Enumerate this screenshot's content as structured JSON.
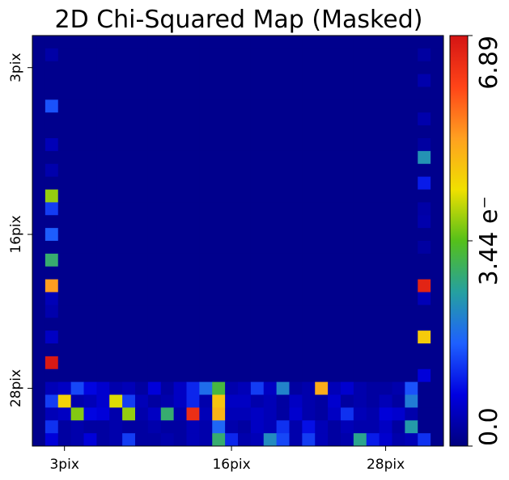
{
  "chart_data": {
    "type": "heatmap",
    "title": "2D Chi-Squared Map (Masked)",
    "grid_size": 32,
    "x_ticks": [
      {
        "index": 3,
        "label": "3pix"
      },
      {
        "index": 16,
        "label": "16pix"
      },
      {
        "index": 28,
        "label": "28pix"
      }
    ],
    "y_ticks": [
      {
        "index": 3,
        "label": "3pix"
      },
      {
        "index": 16,
        "label": "16pix"
      },
      {
        "index": 28,
        "label": "28pix"
      }
    ],
    "colorbar": {
      "min": 0.0,
      "max": 6.89,
      "min_label": "0.0",
      "mid_label": "3.44 e⁻",
      "max_label": "6.89",
      "colormap": "jet-like"
    },
    "background_value": 0.12,
    "cells": [
      {
        "r": 1,
        "c": 1,
        "v": 0.35
      },
      {
        "r": 5,
        "c": 1,
        "v": 1.6
      },
      {
        "r": 8,
        "c": 1,
        "v": 0.5
      },
      {
        "r": 10,
        "c": 1,
        "v": 0.4
      },
      {
        "r": 12,
        "c": 1,
        "v": 3.8
      },
      {
        "r": 13,
        "c": 1,
        "v": 1.4
      },
      {
        "r": 15,
        "c": 1,
        "v": 1.7
      },
      {
        "r": 17,
        "c": 1,
        "v": 2.9
      },
      {
        "r": 19,
        "c": 1,
        "v": 5.2
      },
      {
        "r": 20,
        "c": 1,
        "v": 0.5
      },
      {
        "r": 21,
        "c": 1,
        "v": 0.4
      },
      {
        "r": 23,
        "c": 1,
        "v": 0.6
      },
      {
        "r": 25,
        "c": 1,
        "v": 6.8
      },
      {
        "r": 1,
        "c": 30,
        "v": 0.3
      },
      {
        "r": 3,
        "c": 30,
        "v": 0.4
      },
      {
        "r": 6,
        "c": 30,
        "v": 0.4
      },
      {
        "r": 8,
        "c": 30,
        "v": 0.3
      },
      {
        "r": 9,
        "c": 30,
        "v": 2.4
      },
      {
        "r": 11,
        "c": 30,
        "v": 1.1
      },
      {
        "r": 13,
        "c": 30,
        "v": 0.35
      },
      {
        "r": 14,
        "c": 30,
        "v": 0.4
      },
      {
        "r": 16,
        "c": 30,
        "v": 0.3
      },
      {
        "r": 19,
        "c": 30,
        "v": 6.6
      },
      {
        "r": 20,
        "c": 30,
        "v": 0.5
      },
      {
        "r": 23,
        "c": 30,
        "v": 4.6
      },
      {
        "r": 26,
        "c": 30,
        "v": 0.8
      },
      {
        "r": 27,
        "c": 1,
        "v": 0.5
      },
      {
        "r": 27,
        "c": 2,
        "v": 0.6
      },
      {
        "r": 27,
        "c": 3,
        "v": 1.5
      },
      {
        "r": 27,
        "c": 4,
        "v": 0.9
      },
      {
        "r": 27,
        "c": 5,
        "v": 0.7
      },
      {
        "r": 27,
        "c": 6,
        "v": 0.4
      },
      {
        "r": 27,
        "c": 7,
        "v": 0.5
      },
      {
        "r": 27,
        "c": 8,
        "v": 0.3
      },
      {
        "r": 27,
        "c": 9,
        "v": 0.8
      },
      {
        "r": 27,
        "c": 10,
        "v": 0.3
      },
      {
        "r": 27,
        "c": 11,
        "v": 0.6
      },
      {
        "r": 27,
        "c": 12,
        "v": 1.2
      },
      {
        "r": 27,
        "c": 13,
        "v": 1.9
      },
      {
        "r": 27,
        "c": 14,
        "v": 3.2
      },
      {
        "r": 27,
        "c": 15,
        "v": 0.4
      },
      {
        "r": 27,
        "c": 16,
        "v": 0.5
      },
      {
        "r": 27,
        "c": 17,
        "v": 1.4
      },
      {
        "r": 27,
        "c": 18,
        "v": 0.6
      },
      {
        "r": 27,
        "c": 19,
        "v": 2.2
      },
      {
        "r": 27,
        "c": 20,
        "v": 0.3
      },
      {
        "r": 27,
        "c": 21,
        "v": 0.4
      },
      {
        "r": 27,
        "c": 22,
        "v": 5.0
      },
      {
        "r": 27,
        "c": 23,
        "v": 0.5
      },
      {
        "r": 27,
        "c": 24,
        "v": 0.7
      },
      {
        "r": 27,
        "c": 25,
        "v": 0.4
      },
      {
        "r": 27,
        "c": 26,
        "v": 0.3
      },
      {
        "r": 27,
        "c": 27,
        "v": 0.3
      },
      {
        "r": 27,
        "c": 28,
        "v": 0.4
      },
      {
        "r": 27,
        "c": 29,
        "v": 1.6
      },
      {
        "r": 28,
        "c": 1,
        "v": 1.4
      },
      {
        "r": 28,
        "c": 2,
        "v": 4.5
      },
      {
        "r": 28,
        "c": 3,
        "v": 0.4
      },
      {
        "r": 28,
        "c": 4,
        "v": 0.5
      },
      {
        "r": 28,
        "c": 5,
        "v": 0.7
      },
      {
        "r": 28,
        "c": 6,
        "v": 4.2
      },
      {
        "r": 28,
        "c": 7,
        "v": 1.4
      },
      {
        "r": 28,
        "c": 8,
        "v": 0.5
      },
      {
        "r": 28,
        "c": 9,
        "v": 0.3
      },
      {
        "r": 28,
        "c": 10,
        "v": 0.4
      },
      {
        "r": 28,
        "c": 11,
        "v": 0.6
      },
      {
        "r": 28,
        "c": 12,
        "v": 1.2
      },
      {
        "r": 28,
        "c": 13,
        "v": 0.4
      },
      {
        "r": 28,
        "c": 14,
        "v": 4.7
      },
      {
        "r": 28,
        "c": 15,
        "v": 0.6
      },
      {
        "r": 28,
        "c": 16,
        "v": 0.6
      },
      {
        "r": 28,
        "c": 17,
        "v": 0.4
      },
      {
        "r": 28,
        "c": 18,
        "v": 0.5
      },
      {
        "r": 28,
        "c": 19,
        "v": 0.3
      },
      {
        "r": 28,
        "c": 20,
        "v": 0.6
      },
      {
        "r": 28,
        "c": 21,
        "v": 0.4
      },
      {
        "r": 28,
        "c": 22,
        "v": 0.3
      },
      {
        "r": 28,
        "c": 23,
        "v": 0.7
      },
      {
        "r": 28,
        "c": 24,
        "v": 0.3
      },
      {
        "r": 28,
        "c": 25,
        "v": 0.4
      },
      {
        "r": 28,
        "c": 26,
        "v": 0.3
      },
      {
        "r": 28,
        "c": 27,
        "v": 0.5
      },
      {
        "r": 28,
        "c": 28,
        "v": 0.3
      },
      {
        "r": 28,
        "c": 29,
        "v": 2.1
      },
      {
        "r": 29,
        "c": 1,
        "v": 0.5
      },
      {
        "r": 29,
        "c": 2,
        "v": 0.6
      },
      {
        "r": 29,
        "c": 3,
        "v": 3.7
      },
      {
        "r": 29,
        "c": 4,
        "v": 0.9
      },
      {
        "r": 29,
        "c": 5,
        "v": 0.8
      },
      {
        "r": 29,
        "c": 6,
        "v": 0.4
      },
      {
        "r": 29,
        "c": 7,
        "v": 3.8
      },
      {
        "r": 29,
        "c": 8,
        "v": 0.4
      },
      {
        "r": 29,
        "c": 9,
        "v": 0.6
      },
      {
        "r": 29,
        "c": 10,
        "v": 2.9
      },
      {
        "r": 29,
        "c": 11,
        "v": 0.4
      },
      {
        "r": 29,
        "c": 12,
        "v": 6.4
      },
      {
        "r": 29,
        "c": 13,
        "v": 0.5
      },
      {
        "r": 29,
        "c": 14,
        "v": 4.9
      },
      {
        "r": 29,
        "c": 15,
        "v": 0.5
      },
      {
        "r": 29,
        "c": 16,
        "v": 0.5
      },
      {
        "r": 29,
        "c": 17,
        "v": 0.6
      },
      {
        "r": 29,
        "c": 18,
        "v": 0.5
      },
      {
        "r": 29,
        "c": 19,
        "v": 0.3
      },
      {
        "r": 29,
        "c": 20,
        "v": 0.7
      },
      {
        "r": 29,
        "c": 21,
        "v": 0.4
      },
      {
        "r": 29,
        "c": 22,
        "v": 0.3
      },
      {
        "r": 29,
        "c": 23,
        "v": 0.6
      },
      {
        "r": 29,
        "c": 24,
        "v": 1.3
      },
      {
        "r": 29,
        "c": 25,
        "v": 0.5
      },
      {
        "r": 29,
        "c": 26,
        "v": 0.4
      },
      {
        "r": 29,
        "c": 27,
        "v": 0.8
      },
      {
        "r": 29,
        "c": 28,
        "v": 0.7
      },
      {
        "r": 29,
        "c": 29,
        "v": 0.4
      },
      {
        "r": 30,
        "c": 1,
        "v": 1.3
      },
      {
        "r": 30,
        "c": 2,
        "v": 0.3
      },
      {
        "r": 30,
        "c": 3,
        "v": 0.4
      },
      {
        "r": 30,
        "c": 4,
        "v": 0.3
      },
      {
        "r": 30,
        "c": 5,
        "v": 0.3
      },
      {
        "r": 30,
        "c": 6,
        "v": 0.4
      },
      {
        "r": 30,
        "c": 7,
        "v": 0.3
      },
      {
        "r": 30,
        "c": 8,
        "v": 0.3
      },
      {
        "r": 30,
        "c": 9,
        "v": 0.4
      },
      {
        "r": 30,
        "c": 10,
        "v": 0.3
      },
      {
        "r": 30,
        "c": 11,
        "v": 0.3
      },
      {
        "r": 30,
        "c": 12,
        "v": 0.5
      },
      {
        "r": 30,
        "c": 13,
        "v": 0.4
      },
      {
        "r": 30,
        "c": 14,
        "v": 1.8
      },
      {
        "r": 30,
        "c": 15,
        "v": 0.4
      },
      {
        "r": 30,
        "c": 16,
        "v": 0.3
      },
      {
        "r": 30,
        "c": 17,
        "v": 0.6
      },
      {
        "r": 30,
        "c": 18,
        "v": 0.5
      },
      {
        "r": 30,
        "c": 19,
        "v": 1.3
      },
      {
        "r": 30,
        "c": 20,
        "v": 0.4
      },
      {
        "r": 30,
        "c": 21,
        "v": 1.0
      },
      {
        "r": 30,
        "c": 22,
        "v": 0.5
      },
      {
        "r": 30,
        "c": 23,
        "v": 0.3
      },
      {
        "r": 30,
        "c": 24,
        "v": 0.5
      },
      {
        "r": 30,
        "c": 25,
        "v": 0.4
      },
      {
        "r": 30,
        "c": 26,
        "v": 0.4
      },
      {
        "r": 30,
        "c": 27,
        "v": 0.6
      },
      {
        "r": 30,
        "c": 28,
        "v": 0.3
      },
      {
        "r": 30,
        "c": 29,
        "v": 2.5
      },
      {
        "r": 31,
        "c": 1,
        "v": 0.8
      },
      {
        "r": 31,
        "c": 2,
        "v": 0.3
      },
      {
        "r": 31,
        "c": 3,
        "v": 0.4
      },
      {
        "r": 31,
        "c": 4,
        "v": 0.8
      },
      {
        "r": 31,
        "c": 5,
        "v": 0.3
      },
      {
        "r": 31,
        "c": 6,
        "v": 0.4
      },
      {
        "r": 31,
        "c": 7,
        "v": 1.4
      },
      {
        "r": 31,
        "c": 8,
        "v": 0.3
      },
      {
        "r": 31,
        "c": 9,
        "v": 0.3
      },
      {
        "r": 31,
        "c": 10,
        "v": 0.4
      },
      {
        "r": 31,
        "c": 11,
        "v": 0.3
      },
      {
        "r": 31,
        "c": 12,
        "v": 0.5
      },
      {
        "r": 31,
        "c": 13,
        "v": 0.4
      },
      {
        "r": 31,
        "c": 14,
        "v": 2.9
      },
      {
        "r": 31,
        "c": 15,
        "v": 1.2
      },
      {
        "r": 31,
        "c": 16,
        "v": 0.4
      },
      {
        "r": 31,
        "c": 17,
        "v": 0.5
      },
      {
        "r": 31,
        "c": 18,
        "v": 2.3
      },
      {
        "r": 31,
        "c": 19,
        "v": 1.5
      },
      {
        "r": 31,
        "c": 20,
        "v": 0.4
      },
      {
        "r": 31,
        "c": 21,
        "v": 1.4
      },
      {
        "r": 31,
        "c": 22,
        "v": 0.5
      },
      {
        "r": 31,
        "c": 23,
        "v": 0.3
      },
      {
        "r": 31,
        "c": 24,
        "v": 0.4
      },
      {
        "r": 31,
        "c": 25,
        "v": 2.7
      },
      {
        "r": 31,
        "c": 26,
        "v": 1.1
      },
      {
        "r": 31,
        "c": 27,
        "v": 0.7
      },
      {
        "r": 31,
        "c": 28,
        "v": 0.4
      },
      {
        "r": 31,
        "c": 29,
        "v": 0.5
      },
      {
        "r": 31,
        "c": 30,
        "v": 1.3
      }
    ]
  }
}
